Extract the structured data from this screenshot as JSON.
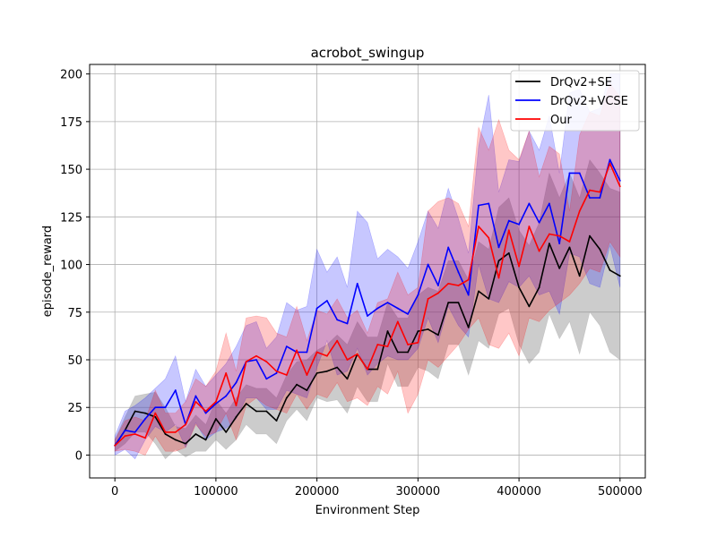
{
  "chart_data": {
    "type": "line",
    "title": "acrobot_swingup",
    "xlabel": "Environment Step",
    "ylabel": "episode_reward",
    "xlim": [
      -25000,
      525000
    ],
    "ylim": [
      -12,
      205
    ],
    "xticks": [
      0,
      100000,
      200000,
      300000,
      400000,
      500000
    ],
    "xtick_labels": [
      "0",
      "100000",
      "200000",
      "300000",
      "400000",
      "500000"
    ],
    "yticks": [
      0,
      25,
      50,
      75,
      100,
      125,
      150,
      175,
      200
    ],
    "ytick_labels": [
      "0",
      "25",
      "50",
      "75",
      "100",
      "125",
      "150",
      "175",
      "200"
    ],
    "grid": true,
    "legend_position": "top-right",
    "x": [
      0,
      10000,
      20000,
      30000,
      40000,
      50000,
      60000,
      70000,
      80000,
      90000,
      100000,
      110000,
      120000,
      130000,
      140000,
      150000,
      160000,
      170000,
      180000,
      190000,
      200000,
      210000,
      220000,
      230000,
      240000,
      250000,
      260000,
      270000,
      280000,
      290000,
      300000,
      310000,
      320000,
      330000,
      340000,
      350000,
      360000,
      370000,
      380000,
      390000,
      400000,
      410000,
      420000,
      430000,
      440000,
      450000,
      460000,
      470000,
      480000,
      490000,
      500000
    ],
    "series": [
      {
        "name": "DrQv2+SE",
        "color": "#000000",
        "band_color": "#808080",
        "values": [
          5,
          13,
          23,
          22,
          20,
          11,
          8,
          6,
          11,
          8,
          19,
          12,
          20,
          27,
          23,
          23,
          18,
          30,
          37,
          34,
          43,
          44,
          46,
          40,
          53,
          45,
          45,
          65,
          54,
          54,
          65,
          66,
          63,
          80,
          80,
          67,
          86,
          82,
          102,
          106,
          88,
          78,
          88,
          111,
          98,
          109,
          94,
          115,
          108,
          97,
          94
        ],
        "upper": [
          8,
          20,
          31,
          32,
          33,
          25,
          15,
          14,
          21,
          16,
          29,
          22,
          30,
          37,
          35,
          35,
          30,
          42,
          49,
          50,
          55,
          58,
          63,
          58,
          70,
          62,
          62,
          80,
          72,
          72,
          84,
          88,
          86,
          102,
          102,
          92,
          112,
          108,
          130,
          135,
          118,
          110,
          122,
          148,
          135,
          148,
          135,
          155,
          148,
          140,
          138
        ],
        "lower": [
          2,
          6,
          12,
          12,
          6,
          -2,
          3,
          -1,
          2,
          2,
          8,
          3,
          8,
          16,
          11,
          11,
          6,
          18,
          24,
          18,
          30,
          28,
          29,
          22,
          36,
          28,
          28,
          48,
          36,
          36,
          46,
          44,
          40,
          58,
          58,
          42,
          60,
          56,
          74,
          77,
          58,
          48,
          54,
          74,
          61,
          70,
          53,
          75,
          68,
          54,
          50
        ]
      },
      {
        "name": "DrQv2+VCSE",
        "color": "#0000ff",
        "band_color": "#0000ff",
        "values": [
          5,
          13,
          12,
          19,
          25,
          25,
          34,
          16,
          31,
          22,
          27,
          31,
          38,
          49,
          50,
          40,
          43,
          57,
          54,
          54,
          77,
          81,
          71,
          69,
          90,
          73,
          77,
          80,
          77,
          74,
          84,
          100,
          89,
          109,
          96,
          84,
          131,
          132,
          109,
          123,
          121,
          132,
          122,
          132,
          111,
          148,
          148,
          135,
          135,
          155,
          144
        ],
        "upper": [
          10,
          23,
          26,
          30,
          35,
          40,
          52,
          28,
          45,
          36,
          42,
          48,
          57,
          68,
          70,
          56,
          62,
          80,
          76,
          78,
          108,
          96,
          104,
          88,
          128,
          122,
          103,
          108,
          104,
          98,
          112,
          128,
          119,
          140,
          124,
          106,
          162,
          189,
          138,
          155,
          154,
          170,
          160,
          178,
          148,
          190,
          192,
          180,
          182,
          200,
          200
        ],
        "lower": [
          0,
          3,
          -2,
          8,
          15,
          12,
          16,
          4,
          17,
          8,
          12,
          14,
          19,
          30,
          30,
          24,
          24,
          34,
          32,
          30,
          46,
          60,
          42,
          44,
          56,
          42,
          48,
          52,
          50,
          50,
          56,
          72,
          59,
          78,
          68,
          62,
          100,
          82,
          80,
          91,
          88,
          94,
          84,
          86,
          74,
          106,
          104,
          90,
          88,
          110,
          88
        ]
      },
      {
        "name": "Our",
        "color": "#ff0000",
        "band_color": "#ff0000",
        "values": [
          5,
          10,
          11,
          9,
          22,
          12,
          12,
          16,
          28,
          23,
          28,
          43,
          26,
          49,
          52,
          49,
          44,
          42,
          55,
          42,
          54,
          52,
          60,
          50,
          53,
          45,
          58,
          57,
          70,
          58,
          59,
          82,
          85,
          90,
          89,
          92,
          120,
          114,
          93,
          118,
          99,
          120,
          107,
          116,
          115,
          112,
          128,
          139,
          138,
          153,
          141
        ],
        "upper": [
          8,
          18,
          20,
          18,
          34,
          22,
          22,
          28,
          40,
          36,
          44,
          64,
          44,
          72,
          73,
          72,
          64,
          62,
          78,
          60,
          76,
          74,
          82,
          72,
          76,
          64,
          80,
          82,
          96,
          84,
          88,
          128,
          133,
          135,
          132,
          120,
          172,
          160,
          176,
          160,
          155,
          170,
          146,
          162,
          158,
          128,
          168,
          180,
          178,
          195,
          188
        ],
        "lower": [
          2,
          3,
          2,
          0,
          10,
          2,
          2,
          4,
          16,
          10,
          12,
          22,
          8,
          26,
          30,
          26,
          24,
          22,
          32,
          24,
          32,
          30,
          38,
          28,
          30,
          26,
          36,
          32,
          44,
          22,
          32,
          50,
          46,
          52,
          58,
          66,
          72,
          58,
          56,
          64,
          52,
          72,
          70,
          76,
          80,
          84,
          90,
          98,
          96,
          112,
          104
        ]
      }
    ]
  }
}
